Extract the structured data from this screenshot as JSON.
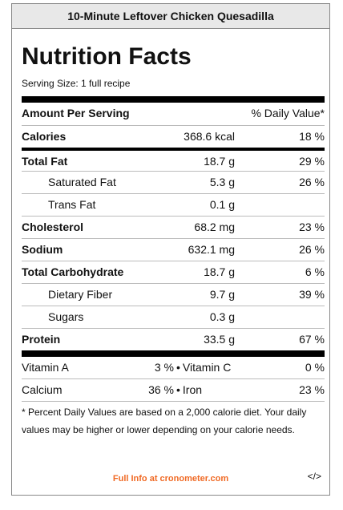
{
  "header": {
    "title": "10-Minute Leftover Chicken Quesadilla"
  },
  "label": {
    "title": "Nutrition Facts",
    "serving": "Serving Size: 1 full recipe",
    "amount_header": "Amount Per Serving",
    "dv_header": "% Daily Value*"
  },
  "nutrients": [
    {
      "name": "Calories",
      "amount": "368.6 kcal",
      "dv": "18 %"
    },
    {
      "name": "Total Fat",
      "amount": "18.7 g",
      "dv": "29 %"
    },
    {
      "name": "Saturated Fat",
      "amount": "5.3 g",
      "dv": "26 %"
    },
    {
      "name": "Trans Fat",
      "amount": "0.1 g"
    },
    {
      "name": "Cholesterol",
      "amount": "68.2 mg",
      "dv": "23 %"
    },
    {
      "name": "Sodium",
      "amount": "632.1 mg",
      "dv": "26 %"
    },
    {
      "name": "Total Carbohydrate",
      "amount": "18.7 g",
      "dv": "6 %"
    },
    {
      "name": "Dietary Fiber",
      "amount": "9.7 g",
      "dv": "39 %"
    },
    {
      "name": "Sugars",
      "amount": "0.3 g"
    },
    {
      "name": "Protein",
      "amount": "33.5 g",
      "dv": "67 %"
    }
  ],
  "vitamins": [
    {
      "name1": "Vitamin A",
      "dv1": "3 %",
      "sep": "•",
      "name2": "Vitamin C",
      "dv2": "0 %"
    },
    {
      "name1": "Calcium",
      "dv1": "36 %",
      "sep": "•",
      "name2": "Iron",
      "dv2": "23 %"
    }
  ],
  "footnote": "* Percent Daily Values are based on a 2,000 calorie diet. Your daily values may be higher or lower depending on your calorie needs.",
  "footer": {
    "link": "Full Info at cronometer.com",
    "embed": "</>"
  }
}
